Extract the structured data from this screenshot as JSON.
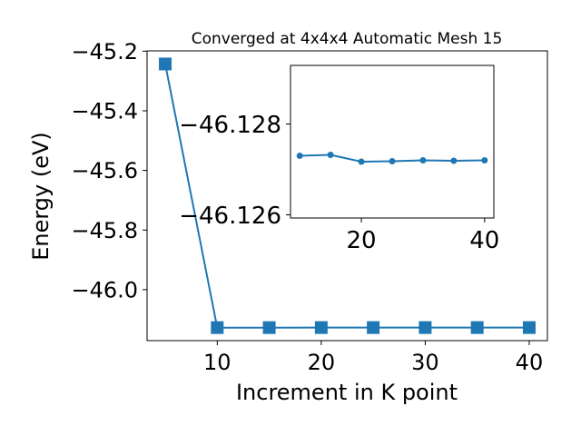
{
  "chart_data": [
    {
      "type": "line",
      "title": "Converged at 4x4x4 Automatic Mesh 15",
      "xlabel": "Increment in K point",
      "ylabel": "Energy (eV)",
      "x": [
        5,
        10,
        15,
        20,
        25,
        30,
        35,
        40
      ],
      "series": [
        {
          "values": [
            -45.243,
            -46.1273,
            -46.1273,
            -46.12715,
            -46.12716,
            -46.12718,
            -46.12716,
            -46.12718
          ],
          "color": "#1f77b4",
          "marker": "square"
        }
      ],
      "xlim": [
        3.25,
        41.75
      ],
      "ylim": [
        -46.171,
        -45.199
      ],
      "xticks": [
        10,
        20,
        30,
        40
      ],
      "xtick_labels": [
        "10",
        "20",
        "30",
        "40"
      ],
      "yticks": [
        -46.0,
        -45.8,
        -45.6,
        -45.4,
        -45.2
      ],
      "ytick_labels": [
        "−46.0",
        "−45.8",
        "−45.6",
        "−45.4",
        "−45.2"
      ],
      "grid": false,
      "legend": "none"
    },
    {
      "type": "line",
      "title": "",
      "xlabel": "",
      "ylabel": "",
      "x": [
        10,
        15,
        20,
        25,
        30,
        35,
        40
      ],
      "series": [
        {
          "values": [
            -46.1273,
            -46.12732,
            -46.12717,
            -46.12718,
            -46.1272,
            -46.12719,
            -46.1272
          ],
          "color": "#1f77b4",
          "marker": "circle"
        }
      ],
      "xlim": [
        8.5,
        41.5
      ],
      "ylim": [
        -46.12593,
        -46.12929
      ],
      "xticks": [
        20,
        40
      ],
      "xtick_labels": [
        "20",
        "40"
      ],
      "yticks": [
        -46.128,
        -46.126
      ],
      "ytick_labels": [
        "−46.128",
        "−46.126"
      ],
      "grid": false,
      "legend": "none"
    }
  ]
}
